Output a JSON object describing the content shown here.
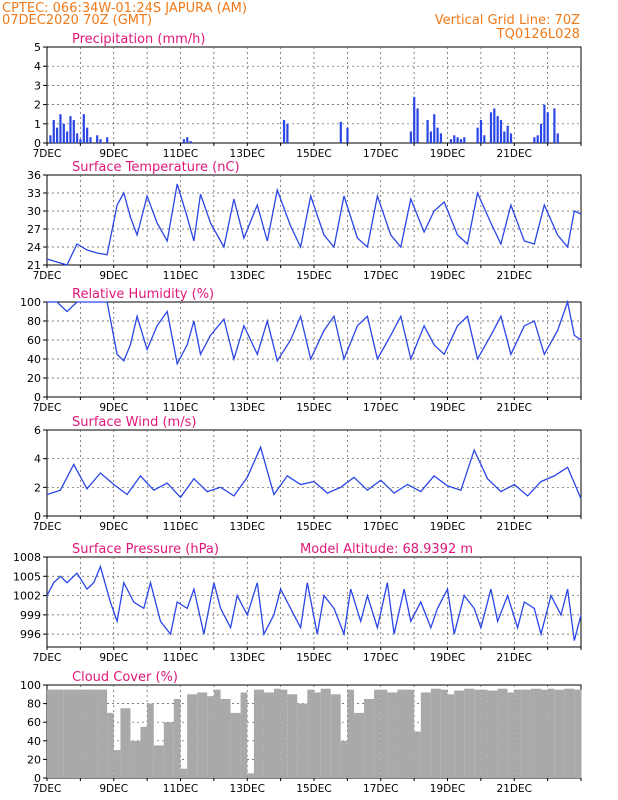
{
  "header": {
    "line1": "CPTEC:  066:34W-01:24S  JAPURA (AM)",
    "line2": "07DEC2020 70Z (GMT)",
    "right1": "Vertical Grid Line: 70Z",
    "right2": "TQ0126L028"
  },
  "date_labels": [
    "7DEC",
    "9DEC",
    "11DEC",
    "13DEC",
    "15DEC",
    "17DEC",
    "19DEC",
    "21DEC"
  ],
  "colors": {
    "line": "#2a46e6",
    "bar": "#2a46e6",
    "title": "#e0187a",
    "header": "#f07a1a",
    "cloud": "#a9a9a9",
    "grid": "#555555"
  },
  "chart_data": [
    {
      "type": "bar",
      "title": "Precipitation (mm/h)",
      "ylim": [
        0,
        5
      ],
      "yticks": [
        0,
        1,
        2,
        3,
        4,
        5
      ],
      "x": [
        0.1,
        0.2,
        0.3,
        0.4,
        0.5,
        0.6,
        0.7,
        0.8,
        0.9,
        1.0,
        1.1,
        1.2,
        1.3,
        1.5,
        1.6,
        1.8,
        4.1,
        4.2,
        4.3,
        7.1,
        7.2,
        8.8,
        9.0,
        10.9,
        11.0,
        11.1,
        11.4,
        11.5,
        11.6,
        11.7,
        11.8,
        12.1,
        12.2,
        12.3,
        12.4,
        12.5,
        12.9,
        13.0,
        13.1,
        13.3,
        13.4,
        13.5,
        13.6,
        13.7,
        13.8,
        13.9,
        14.6,
        14.7,
        14.8,
        14.9,
        15.0,
        15.2,
        15.3
      ],
      "values": [
        0.4,
        1.2,
        0.8,
        1.5,
        1.0,
        0.6,
        1.4,
        1.2,
        0.5,
        0.2,
        1.5,
        0.8,
        0.3,
        0.4,
        0.2,
        0.3,
        0.2,
        0.3,
        0.1,
        1.2,
        1.0,
        1.1,
        0.8,
        0.6,
        2.4,
        1.8,
        1.2,
        0.6,
        1.5,
        0.8,
        0.5,
        0.2,
        0.4,
        0.3,
        0.2,
        0.3,
        0.8,
        1.2,
        0.4,
        1.6,
        1.8,
        1.4,
        1.2,
        0.6,
        0.9,
        0.5,
        0.3,
        0.4,
        1.0,
        2.0,
        1.6,
        1.8,
        0.5
      ]
    },
    {
      "type": "line",
      "title": "Surface Temperature (nC)",
      "ylim": [
        21,
        36
      ],
      "yticks": [
        21,
        24,
        27,
        30,
        33,
        36
      ],
      "x": [
        0,
        0.3,
        0.6,
        0.9,
        1.2,
        1.5,
        1.8,
        2.1,
        2.3,
        2.5,
        2.7,
        3.0,
        3.3,
        3.6,
        3.9,
        4.2,
        4.4,
        4.6,
        4.9,
        5.3,
        5.6,
        5.9,
        6.3,
        6.6,
        6.9,
        7.3,
        7.6,
        7.9,
        8.3,
        8.6,
        8.9,
        9.3,
        9.6,
        9.9,
        10.3,
        10.6,
        10.9,
        11.3,
        11.6,
        11.9,
        12.3,
        12.6,
        12.9,
        13.3,
        13.6,
        13.9,
        14.3,
        14.6,
        14.9,
        15.3,
        15.6,
        15.8,
        16.0
      ],
      "values": [
        22.0,
        21.5,
        21.0,
        24.5,
        23.5,
        23.0,
        22.7,
        31.0,
        33.0,
        29.0,
        26.0,
        32.5,
        28.0,
        25.0,
        34.5,
        29.0,
        25.0,
        32.8,
        28.0,
        24.0,
        32.0,
        25.5,
        31.0,
        25.0,
        33.5,
        27.5,
        24.0,
        32.5,
        26.0,
        24.0,
        32.5,
        25.5,
        24.0,
        32.5,
        26.0,
        24.0,
        32.0,
        26.5,
        30.0,
        31.5,
        26.0,
        24.5,
        33.0,
        28.0,
        24.5,
        31.0,
        25.0,
        24.5,
        31.0,
        26.0,
        24.0,
        30.0,
        29.5
      ]
    },
    {
      "type": "line",
      "title": "Relative Humidity (%)",
      "ylim": [
        0,
        100
      ],
      "yticks": [
        0,
        20,
        40,
        60,
        80,
        100
      ],
      "x": [
        0,
        0.3,
        0.6,
        0.9,
        1.2,
        1.5,
        1.8,
        2.1,
        2.3,
        2.5,
        2.7,
        3.0,
        3.3,
        3.6,
        3.9,
        4.2,
        4.4,
        4.6,
        4.9,
        5.3,
        5.6,
        5.9,
        6.3,
        6.6,
        6.9,
        7.3,
        7.6,
        7.9,
        8.3,
        8.6,
        8.9,
        9.3,
        9.6,
        9.9,
        10.3,
        10.6,
        10.9,
        11.3,
        11.6,
        11.9,
        12.3,
        12.6,
        12.9,
        13.3,
        13.6,
        13.9,
        14.3,
        14.6,
        14.9,
        15.3,
        15.6,
        15.8,
        16.0
      ],
      "values": [
        100,
        100,
        90,
        100,
        100,
        100,
        100,
        45,
        38,
        55,
        85,
        50,
        75,
        90,
        35,
        55,
        80,
        45,
        65,
        82,
        40,
        75,
        45,
        80,
        38,
        60,
        85,
        40,
        70,
        85,
        40,
        75,
        85,
        40,
        65,
        85,
        40,
        75,
        55,
        45,
        75,
        85,
        40,
        65,
        85,
        45,
        75,
        80,
        45,
        70,
        100,
        65,
        60
      ]
    },
    {
      "type": "line",
      "title": "Surface Wind (m/s)",
      "ylim": [
        0,
        6
      ],
      "yticks": [
        0,
        2,
        4,
        6
      ],
      "x": [
        0,
        0.4,
        0.8,
        1.2,
        1.6,
        2.0,
        2.4,
        2.8,
        3.2,
        3.6,
        4.0,
        4.4,
        4.8,
        5.2,
        5.6,
        6.0,
        6.4,
        6.8,
        7.2,
        7.6,
        8.0,
        8.4,
        8.8,
        9.2,
        9.6,
        10.0,
        10.4,
        10.8,
        11.2,
        11.6,
        12.0,
        12.4,
        12.8,
        13.2,
        13.6,
        14.0,
        14.4,
        14.8,
        15.2,
        15.6,
        16.0
      ],
      "values": [
        1.5,
        1.8,
        3.6,
        1.9,
        3.0,
        2.2,
        1.5,
        2.8,
        1.8,
        2.3,
        1.3,
        2.6,
        1.7,
        2.0,
        1.4,
        2.7,
        4.8,
        1.5,
        2.8,
        2.2,
        2.4,
        1.6,
        2.0,
        2.7,
        1.8,
        2.5,
        1.6,
        2.2,
        1.7,
        2.8,
        2.1,
        1.8,
        4.6,
        2.6,
        1.7,
        2.2,
        1.4,
        2.4,
        2.8,
        3.4,
        1.2
      ]
    },
    {
      "type": "line",
      "title": "Surface Pressure (hPa)",
      "annotation": "Model Altitude: 68.9392 m",
      "ylim": [
        994,
        1008
      ],
      "yticks": [
        996,
        999,
        1002,
        1005,
        1008
      ],
      "x": [
        0,
        0.2,
        0.4,
        0.6,
        0.9,
        1.2,
        1.4,
        1.6,
        1.9,
        2.1,
        2.3,
        2.6,
        2.9,
        3.1,
        3.4,
        3.7,
        3.9,
        4.2,
        4.4,
        4.7,
        5.0,
        5.2,
        5.5,
        5.7,
        6.0,
        6.3,
        6.5,
        6.8,
        7.0,
        7.3,
        7.6,
        7.8,
        8.1,
        8.3,
        8.6,
        8.9,
        9.1,
        9.4,
        9.6,
        9.9,
        10.2,
        10.4,
        10.7,
        10.9,
        11.2,
        11.5,
        11.7,
        12.0,
        12.2,
        12.5,
        12.8,
        13.0,
        13.3,
        13.5,
        13.8,
        14.1,
        14.3,
        14.6,
        14.8,
        15.1,
        15.4,
        15.6,
        15.8,
        16.0
      ],
      "values": [
        1002,
        1004,
        1005,
        1004,
        1005.5,
        1003,
        1004,
        1006.5,
        1001,
        998,
        1004,
        1001,
        1000,
        1004,
        998,
        996,
        1001,
        1000,
        1003,
        996,
        1004,
        1000,
        997,
        1002,
        999,
        1004,
        996,
        999,
        1003,
        1000,
        997,
        1004,
        996,
        1002,
        1000,
        996,
        1003,
        998,
        1002,
        997,
        1004,
        996,
        1003,
        998,
        1001,
        997,
        1000,
        1003,
        996,
        1002,
        1000,
        997,
        1003,
        998,
        1002,
        997,
        1001,
        1000,
        996,
        1002,
        999,
        1003,
        995,
        999
      ]
    },
    {
      "type": "area",
      "title": "Cloud Cover (%)",
      "ylim": [
        0,
        100
      ],
      "yticks": [
        0,
        20,
        40,
        60,
        80,
        100
      ],
      "x": [
        0,
        0.5,
        1.0,
        1.5,
        1.8,
        2.0,
        2.2,
        2.5,
        2.8,
        3.0,
        3.2,
        3.5,
        3.8,
        4.0,
        4.2,
        4.5,
        4.8,
        5.0,
        5.2,
        5.5,
        5.8,
        6.0,
        6.2,
        6.5,
        6.8,
        7.0,
        7.2,
        7.5,
        7.8,
        8.0,
        8.2,
        8.5,
        8.8,
        9.0,
        9.2,
        9.5,
        9.8,
        10.0,
        10.2,
        10.5,
        10.8,
        11.0,
        11.2,
        11.5,
        11.8,
        12.0,
        12.2,
        12.5,
        12.8,
        13.0,
        13.2,
        13.5,
        13.8,
        14.0,
        14.2,
        14.5,
        14.8,
        15.0,
        15.2,
        15.5,
        15.8,
        16.0
      ],
      "values": [
        95,
        95,
        95,
        95,
        70,
        30,
        75,
        40,
        55,
        80,
        35,
        60,
        85,
        10,
        90,
        92,
        88,
        95,
        85,
        70,
        92,
        5,
        95,
        92,
        96,
        95,
        90,
        80,
        95,
        92,
        96,
        90,
        40,
        95,
        70,
        85,
        95,
        95,
        92,
        95,
        95,
        50,
        92,
        96,
        95,
        90,
        94,
        96,
        95,
        95,
        94,
        96,
        92,
        95,
        95,
        96,
        95,
        96,
        95,
        96,
        95,
        95
      ]
    }
  ]
}
